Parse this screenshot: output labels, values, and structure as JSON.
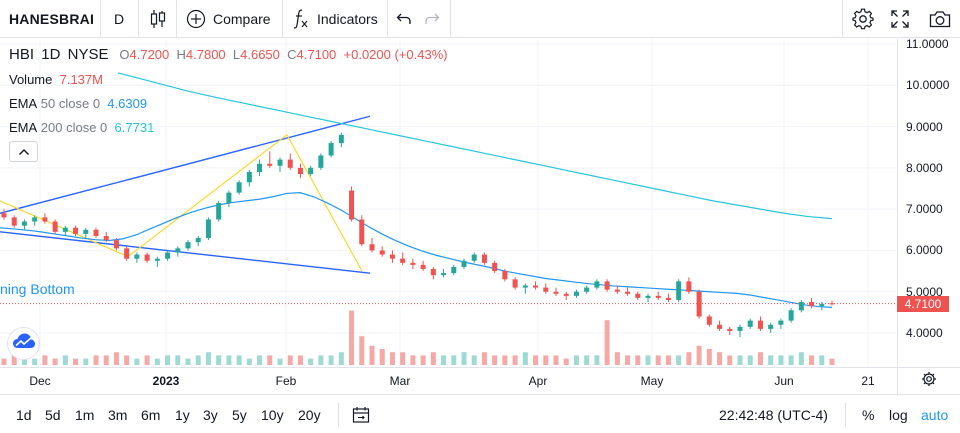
{
  "toolbar": {
    "symbol": "HANESBRAI",
    "interval": "D",
    "compare_label": "Compare",
    "indicators_label": "Indicators",
    "icons": [
      "candles-icon",
      "plus-circle-icon",
      "fx-icon",
      "undo-icon",
      "redo-icon",
      "settings-icon",
      "fullscreen-icon",
      "camera-icon"
    ]
  },
  "legend": {
    "ticker": "HBI",
    "interval": "1D",
    "exchange": "NYSE",
    "open_key": "O",
    "open": "4.7200",
    "high_key": "H",
    "high": "4.7800",
    "low_key": "L",
    "low": "4.6650",
    "close_key": "C",
    "close": "4.7100",
    "change": "+0.0200 (+0.43%)",
    "volume_label": "Volume",
    "volume": "7.137M",
    "ema50_label": "EMA",
    "ema50_params": "50 close 0",
    "ema50_value": "4.6309",
    "ema200_label": "EMA",
    "ema200_params": "200 close 0",
    "ema200_value": "6.7731"
  },
  "pattern_label": "ning Bottom",
  "price_axis": {
    "labels": [
      "11.0000",
      "10.0000",
      "9.0000",
      "8.0000",
      "7.0000",
      "6.0000",
      "5.0000",
      "4.0000"
    ],
    "last_price": "4.7100"
  },
  "time_axis": {
    "labels": [
      "Dec",
      "2023",
      "Feb",
      "Mar",
      "Apr",
      "May",
      "Jun",
      "21"
    ]
  },
  "bottombar": {
    "ranges": [
      "1d",
      "5d",
      "1m",
      "3m",
      "6m",
      "1y",
      "3y",
      "5y",
      "10y",
      "20y"
    ],
    "clock": "22:42:48 (UTC-4)",
    "percent_label": "%",
    "log_label": "log",
    "auto_label": "auto"
  },
  "colors": {
    "up": "#26a69a",
    "down": "#ef5350",
    "ema50": "#2196f3",
    "ema200": "#26c6da",
    "pattern_lines": "#2962ff",
    "zigzag": "#f9d71c"
  },
  "chart_data": {
    "type": "candlestick",
    "ylim": [
      3.4,
      11.2
    ],
    "candles": [
      [
        6.9,
        7.0,
        6.75,
        6.8
      ],
      [
        6.8,
        6.85,
        6.55,
        6.6
      ],
      [
        6.6,
        6.75,
        6.5,
        6.7
      ],
      [
        6.7,
        6.85,
        6.6,
        6.8
      ],
      [
        6.8,
        6.9,
        6.65,
        6.7
      ],
      [
        6.7,
        6.75,
        6.4,
        6.45
      ],
      [
        6.45,
        6.6,
        6.35,
        6.55
      ],
      [
        6.55,
        6.6,
        6.35,
        6.4
      ],
      [
        6.4,
        6.55,
        6.3,
        6.5
      ],
      [
        6.5,
        6.55,
        6.3,
        6.35
      ],
      [
        6.35,
        6.45,
        6.2,
        6.25
      ],
      [
        6.25,
        6.3,
        6.0,
        6.05
      ],
      [
        6.05,
        6.1,
        5.75,
        5.8
      ],
      [
        5.8,
        5.95,
        5.7,
        5.9
      ],
      [
        5.9,
        5.95,
        5.7,
        5.75
      ],
      [
        5.75,
        5.85,
        5.6,
        5.8
      ],
      [
        5.8,
        6.0,
        5.75,
        5.95
      ],
      [
        5.95,
        6.1,
        5.85,
        6.05
      ],
      [
        6.05,
        6.25,
        6.0,
        6.2
      ],
      [
        6.2,
        6.35,
        6.1,
        6.3
      ],
      [
        6.3,
        6.8,
        6.25,
        6.75
      ],
      [
        6.75,
        7.2,
        6.7,
        7.15
      ],
      [
        7.15,
        7.45,
        7.05,
        7.4
      ],
      [
        7.4,
        7.7,
        7.35,
        7.65
      ],
      [
        7.65,
        7.95,
        7.55,
        7.9
      ],
      [
        7.9,
        8.2,
        7.8,
        8.1
      ],
      [
        8.1,
        8.4,
        8.0,
        8.05
      ],
      [
        8.05,
        8.25,
        7.9,
        8.2
      ],
      [
        8.2,
        8.35,
        7.95,
        8.0
      ],
      [
        8.0,
        8.1,
        7.75,
        7.85
      ],
      [
        7.85,
        8.05,
        7.8,
        8.0
      ],
      [
        8.0,
        8.35,
        7.95,
        8.3
      ],
      [
        8.3,
        8.65,
        8.25,
        8.6
      ],
      [
        8.6,
        8.85,
        8.5,
        8.8
      ],
      [
        7.45,
        7.55,
        6.7,
        6.75
      ],
      [
        6.75,
        6.85,
        6.1,
        6.15
      ],
      [
        6.15,
        6.3,
        5.95,
        6.0
      ],
      [
        6.0,
        6.1,
        5.85,
        5.9
      ],
      [
        5.9,
        6.0,
        5.7,
        5.8
      ],
      [
        5.8,
        5.95,
        5.65,
        5.7
      ],
      [
        5.7,
        5.8,
        5.55,
        5.65
      ],
      [
        5.65,
        5.75,
        5.5,
        5.55
      ],
      [
        5.55,
        5.6,
        5.3,
        5.4
      ],
      [
        5.4,
        5.55,
        5.35,
        5.45
      ],
      [
        5.45,
        5.65,
        5.4,
        5.6
      ],
      [
        5.6,
        5.8,
        5.55,
        5.75
      ],
      [
        5.75,
        5.95,
        5.7,
        5.9
      ],
      [
        5.9,
        5.95,
        5.65,
        5.7
      ],
      [
        5.7,
        5.75,
        5.45,
        5.5
      ],
      [
        5.5,
        5.55,
        5.25,
        5.3
      ],
      [
        5.3,
        5.35,
        5.05,
        5.1
      ],
      [
        5.1,
        5.2,
        4.95,
        5.15
      ],
      [
        5.15,
        5.25,
        5.05,
        5.1
      ],
      [
        5.1,
        5.2,
        4.95,
        5.0
      ],
      [
        5.0,
        5.1,
        4.9,
        4.95
      ],
      [
        4.95,
        5.0,
        4.8,
        4.9
      ],
      [
        4.9,
        5.05,
        4.85,
        5.0
      ],
      [
        5.0,
        5.15,
        4.95,
        5.1
      ],
      [
        5.1,
        5.3,
        5.05,
        5.25
      ],
      [
        5.25,
        5.3,
        5.0,
        5.05
      ],
      [
        5.05,
        5.15,
        4.95,
        5.0
      ],
      [
        5.0,
        5.1,
        4.9,
        4.95
      ],
      [
        4.95,
        5.0,
        4.8,
        4.85
      ],
      [
        4.85,
        4.95,
        4.75,
        4.9
      ],
      [
        4.9,
        5.0,
        4.8,
        4.85
      ],
      [
        4.85,
        4.95,
        4.75,
        4.8
      ],
      [
        4.8,
        5.3,
        4.75,
        5.25
      ],
      [
        5.25,
        5.35,
        4.95,
        5.0
      ],
      [
        5.0,
        5.05,
        4.35,
        4.4
      ],
      [
        4.4,
        4.45,
        4.15,
        4.2
      ],
      [
        4.2,
        4.3,
        4.05,
        4.1
      ],
      [
        4.1,
        4.15,
        3.95,
        4.05
      ],
      [
        4.05,
        4.2,
        3.9,
        4.15
      ],
      [
        4.15,
        4.35,
        4.1,
        4.3
      ],
      [
        4.3,
        4.4,
        4.05,
        4.1
      ],
      [
        4.1,
        4.25,
        4.0,
        4.2
      ],
      [
        4.2,
        4.35,
        4.1,
        4.3
      ],
      [
        4.3,
        4.6,
        4.25,
        4.55
      ],
      [
        4.55,
        4.8,
        4.5,
        4.75
      ],
      [
        4.75,
        4.85,
        4.6,
        4.65
      ],
      [
        4.65,
        4.75,
        4.55,
        4.7
      ],
      [
        4.72,
        4.78,
        4.665,
        4.71
      ]
    ],
    "volume": [
      2,
      3,
      2,
      2,
      3,
      2,
      3,
      2,
      2,
      3,
      3,
      4,
      3,
      2,
      3,
      2,
      3,
      3,
      2,
      3,
      4,
      3,
      3,
      3,
      2,
      3,
      3,
      2,
      3,
      3,
      2,
      3,
      3,
      4,
      17,
      9,
      6,
      5,
      4,
      4,
      3,
      3,
      4,
      3,
      3,
      4,
      3,
      4,
      3,
      3,
      3,
      4,
      3,
      3,
      3,
      2,
      3,
      3,
      3,
      14,
      4,
      3,
      3,
      3,
      3,
      3,
      3,
      4,
      6,
      5,
      4,
      3,
      3,
      3,
      4,
      3,
      3,
      3,
      4,
      3,
      3,
      2
    ],
    "ema50": [
      6.55,
      6.52,
      6.49,
      6.45,
      6.4,
      6.35,
      6.3,
      6.26,
      6.24,
      6.28,
      6.38,
      6.52,
      6.66,
      6.8,
      6.92,
      7.02,
      7.1,
      7.16,
      7.2,
      7.24,
      7.3,
      7.38,
      7.4,
      7.3,
      7.15,
      6.98,
      6.78,
      6.58,
      6.4,
      6.24,
      6.1,
      5.98,
      5.88,
      5.8,
      5.72,
      5.65,
      5.58,
      5.5,
      5.44,
      5.38,
      5.32,
      5.28,
      5.24,
      5.2,
      5.17,
      5.14,
      5.12,
      5.1,
      5.08,
      5.06,
      5.04,
      5.02,
      5.0,
      4.98,
      4.96,
      4.92,
      4.86,
      4.8,
      4.74,
      4.68,
      4.64,
      4.62
    ],
    "ema200": [
      10.3,
      10.15,
      10.0,
      9.85,
      9.72,
      9.6,
      9.48,
      9.36,
      9.24,
      9.12,
      9.0,
      8.88,
      8.76,
      8.64,
      8.52,
      8.4,
      8.28,
      8.16,
      8.04,
      7.92,
      7.8,
      7.68,
      7.56,
      7.44,
      7.32,
      7.2,
      7.1,
      7.0,
      6.9,
      6.82,
      6.77
    ],
    "title": ""
  }
}
